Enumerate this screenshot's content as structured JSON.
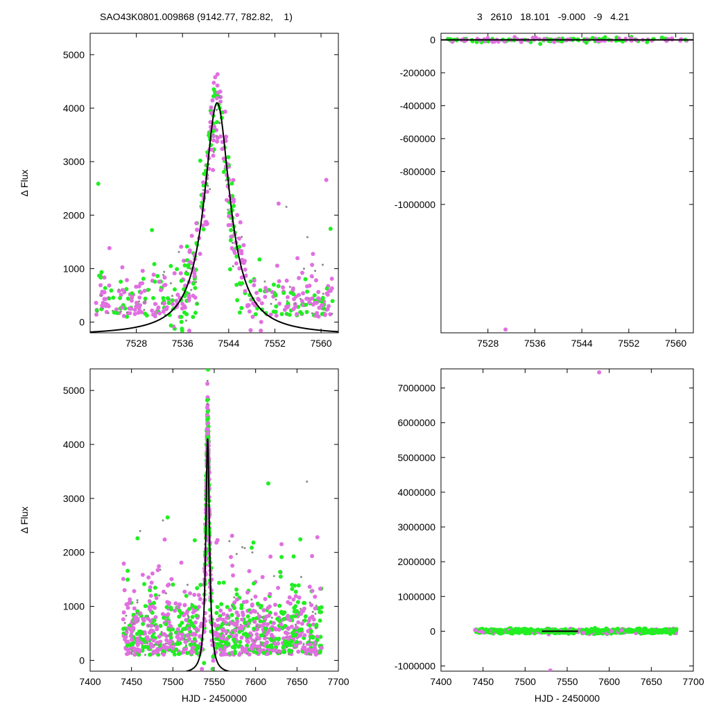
{
  "header": {
    "left": "SAO43K0801.009868 (9142.77, 782.82,    1)",
    "right": "3   2610   18.101   -9.000   -9   4.21"
  },
  "colors": {
    "magenta": "#e070e0",
    "green": "#22ee22",
    "gray": "#888888",
    "fit": "#000000"
  },
  "chart_data": [
    {
      "type": "scatter",
      "panel": "top-left",
      "ylabel": "Δ Flux",
      "xlabel": "",
      "xlim": [
        7520,
        7563
      ],
      "ylim": [
        -200,
        5400
      ],
      "xticks": [
        7528,
        7536,
        7544,
        7552,
        7560
      ],
      "yticks": [
        0,
        1000,
        2000,
        3000,
        4000,
        5000
      ],
      "model": {
        "kind": "lorentzian",
        "center": 7542,
        "amplitude": 4100,
        "hwhm": 2.7,
        "baseline": -250
      },
      "scatter_seed": 11
    },
    {
      "type": "scatter",
      "panel": "top-right",
      "ylabel": "",
      "xlabel": "",
      "xlim": [
        7520,
        7563
      ],
      "ylim": [
        -1780000,
        40000
      ],
      "xticks": [
        7528,
        7536,
        7544,
        7552,
        7560
      ],
      "yticks": [
        0,
        -200000,
        -400000,
        -600000,
        -800000,
        -1000000
      ],
      "model": {
        "kind": "line",
        "y": 0
      },
      "outliers": [
        {
          "x": 7531,
          "y": -1760000,
          "series": "magenta"
        }
      ],
      "scatter_seed": 23
    },
    {
      "type": "scatter",
      "panel": "bottom-left",
      "ylabel": "Δ Flux",
      "xlabel": "HJD - 2450000",
      "xlim": [
        7400,
        7700
      ],
      "ylim": [
        -200,
        5400
      ],
      "xticks": [
        7400,
        7450,
        7500,
        7550,
        7600,
        7650,
        7700
      ],
      "yticks": [
        0,
        1000,
        2000,
        3000,
        4000,
        5000
      ],
      "model": {
        "kind": "lorentzian",
        "center": 7542,
        "amplitude": 4100,
        "hwhm": 2.7,
        "baseline": -250
      },
      "scatter_seed": 37
    },
    {
      "type": "scatter",
      "panel": "bottom-right",
      "ylabel": "",
      "xlabel": "HJD - 2450000",
      "xlim": [
        7400,
        7700
      ],
      "ylim": [
        -1150000,
        7550000
      ],
      "xticks": [
        7400,
        7450,
        7500,
        7550,
        7600,
        7650,
        7700
      ],
      "yticks": [
        -1000000,
        0,
        1000000,
        2000000,
        3000000,
        4000000,
        5000000,
        6000000,
        7000000
      ],
      "model": {
        "kind": "line",
        "y": 0,
        "x_range": [
          7520,
          7563
        ]
      },
      "outliers": [
        {
          "x": 7588,
          "y": 7450000,
          "series": "magenta"
        },
        {
          "x": 7530,
          "y": -1130000,
          "series": "magenta"
        }
      ],
      "scatter_seed": 53
    }
  ]
}
